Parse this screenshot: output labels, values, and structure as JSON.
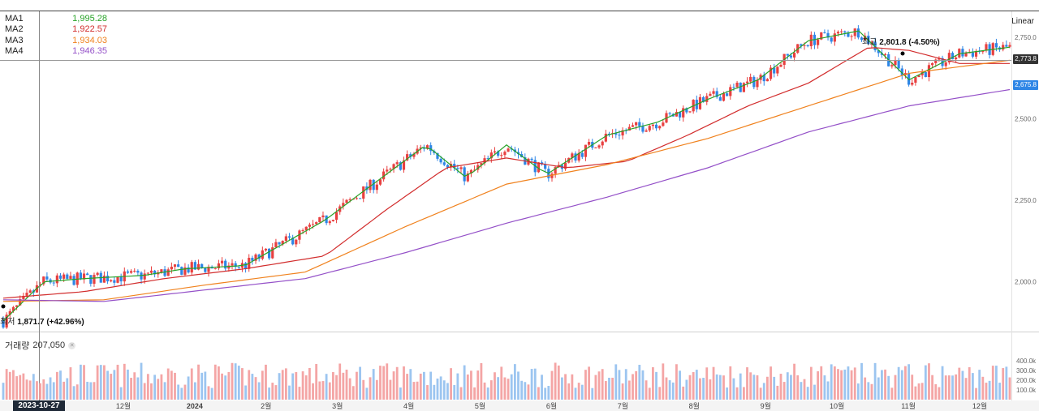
{
  "legend": [
    {
      "name": "MA1",
      "value": "1,995.28",
      "color": "#27a327"
    },
    {
      "name": "MA2",
      "value": "1,922.57",
      "color": "#d22d2d"
    },
    {
      "name": "MA3",
      "value": "1,934.03",
      "color": "#f0821e"
    },
    {
      "name": "MA4",
      "value": "1,946.35",
      "color": "#9450c8"
    }
  ],
  "scale_mode": "Linear",
  "high_label": {
    "prefix": "최고",
    "value": "2,801.8 (-4.50%)"
  },
  "low_label": {
    "prefix": "최저",
    "value": "1,871.7 (+42.96%)"
  },
  "volume": {
    "label": "거래량",
    "value": "207,050"
  },
  "price_tags": {
    "prev": "2,773.8",
    "last": "2,675.8"
  },
  "cursor_date": "2023-10-27",
  "colors": {
    "up": "#e84040",
    "down": "#2e86e6",
    "vol_up": "#f4a5a5",
    "vol_down": "#9cc5f0"
  },
  "chart_data": {
    "type": "candlestick",
    "price_axis": {
      "ticks": [
        "2,000.0",
        "2,250.0",
        "2,500.0",
        "2,750.0"
      ],
      "range": [
        1850,
        2830
      ]
    },
    "volume_axis": {
      "ticks": [
        "100.0k",
        "200.0k",
        "300.0k",
        "400.0k"
      ]
    },
    "x_labels": [
      "12월",
      "2024",
      "2월",
      "3월",
      "4월",
      "5월",
      "6월",
      "7월",
      "8월",
      "9월",
      "10월",
      "11월",
      "12월"
    ],
    "ma_series": [
      {
        "name": "MA1",
        "color": "#27a327",
        "x": [
          0.0,
          0.04,
          0.08,
          0.14,
          0.18,
          0.24,
          0.32,
          0.35,
          0.42,
          0.46,
          0.5,
          0.54,
          0.6,
          0.65,
          0.7,
          0.75,
          0.8,
          0.85,
          0.9,
          0.95,
          1.0
        ],
        "values": [
          1880,
          2000,
          2010,
          2020,
          2040,
          2050,
          2190,
          2260,
          2420,
          2320,
          2420,
          2330,
          2450,
          2490,
          2560,
          2620,
          2740,
          2770,
          2620,
          2700,
          2720
        ]
      },
      {
        "name": "MA2",
        "color": "#d22d2d",
        "x": [
          0.0,
          0.08,
          0.16,
          0.24,
          0.32,
          0.38,
          0.44,
          0.5,
          0.56,
          0.62,
          0.68,
          0.74,
          0.8,
          0.86,
          0.9,
          0.95,
          1.0
        ],
        "values": [
          1950,
          1970,
          2010,
          2040,
          2080,
          2220,
          2350,
          2380,
          2350,
          2370,
          2450,
          2540,
          2610,
          2720,
          2710,
          2670,
          2670
        ]
      },
      {
        "name": "MA3",
        "color": "#f0821e",
        "x": [
          0.0,
          0.1,
          0.2,
          0.3,
          0.4,
          0.5,
          0.6,
          0.7,
          0.8,
          0.9,
          1.0
        ],
        "values": [
          1940,
          1945,
          1990,
          2030,
          2170,
          2300,
          2360,
          2440,
          2540,
          2640,
          2680
        ]
      },
      {
        "name": "MA4",
        "color": "#9450c8",
        "x": [
          0.0,
          0.1,
          0.2,
          0.3,
          0.4,
          0.5,
          0.6,
          0.7,
          0.8,
          0.9,
          1.0
        ],
        "values": [
          1945,
          1940,
          1975,
          2010,
          2090,
          2180,
          2260,
          2350,
          2460,
          2540,
          2590
        ]
      }
    ],
    "high": 2801.8,
    "low": 1871.7,
    "last": 2675.8
  }
}
